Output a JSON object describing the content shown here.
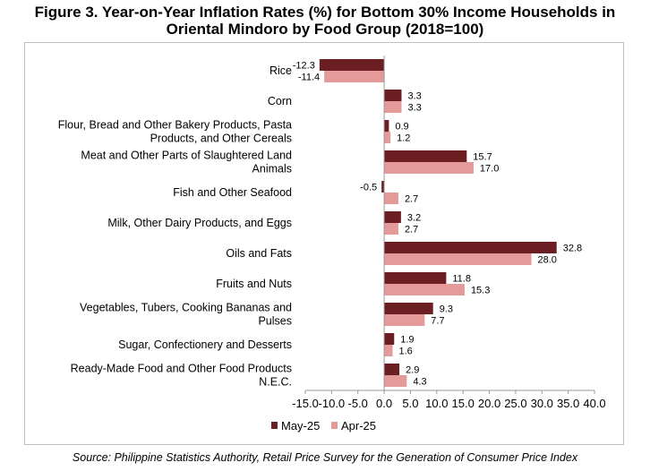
{
  "title": {
    "line1": "Figure 3. Year-on-Year Inflation Rates (%) for Bottom 30% Income Households in",
    "line2": "Oriental Mindoro by Food Group (2018=100)"
  },
  "source": "Source: Philippine Statistics Authority, Retail Price Survey for the Generation of Consumer Price Index",
  "chart_data": {
    "type": "bar",
    "orientation": "horizontal",
    "title": "Figure 3. Year-on-Year Inflation Rates (%) for Bottom 30% Income Households in Oriental Mindoro by Food Group (2018=100)",
    "categories": [
      [
        "Rice"
      ],
      [
        "Corn"
      ],
      [
        "Flour, Bread and Other Bakery Products, Pasta",
        "Products, and Other Cereals"
      ],
      [
        "Meat and Other Parts of Slaughtered Land",
        "Animals"
      ],
      [
        "Fish and Other Seafood"
      ],
      [
        "Milk, Other Dairy Products, and Eggs"
      ],
      [
        "Oils and Fats"
      ],
      [
        "Fruits and Nuts"
      ],
      [
        "Vegetables, Tubers, Cooking Bananas and",
        "Pulses"
      ],
      [
        "Sugar, Confectionery and Desserts"
      ],
      [
        "Ready-Made Food and Other Food Products",
        "N.E.C."
      ]
    ],
    "series": [
      {
        "name": "May-25",
        "color": "#6b1f23",
        "values": [
          -12.3,
          3.3,
          0.9,
          15.7,
          -0.5,
          3.2,
          32.8,
          11.8,
          9.3,
          1.9,
          2.9
        ]
      },
      {
        "name": "Apr-25",
        "color": "#e39a98",
        "values": [
          -11.4,
          3.3,
          1.2,
          17.0,
          2.7,
          2.7,
          28.0,
          15.3,
          7.7,
          1.6,
          4.3
        ]
      }
    ],
    "xlim": [
      -15.0,
      40.0
    ],
    "xticks": [
      "-15.0",
      "-10.0",
      "-5.0",
      "0.0",
      "5.0",
      "10.0",
      "15.0",
      "20.0",
      "25.0",
      "30.0",
      "35.0",
      "40.0"
    ],
    "xtick_values": [
      -15,
      -10,
      -5,
      0,
      5,
      10,
      15,
      20,
      25,
      30,
      35,
      40
    ],
    "legend_position": "bottom",
    "grid": false
  }
}
